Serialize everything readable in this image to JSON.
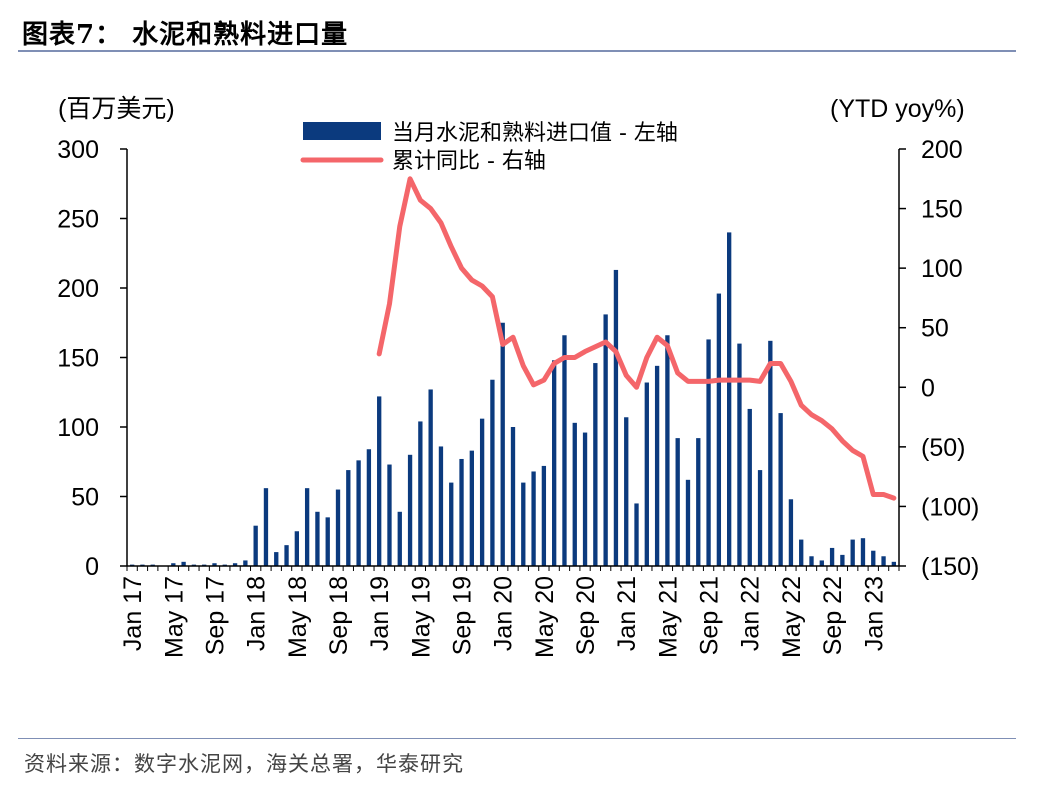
{
  "header": {
    "title": "图表7：  水泥和熟料进口量"
  },
  "footer": {
    "source": "资料来源：数字水泥网，海关总署，华泰研究"
  },
  "chart_data": {
    "type": "bar+line",
    "y_left_unit": "(百万美元)",
    "y_right_unit": "(YTD yoy%)",
    "y_left_ticks": [
      {
        "v": 0,
        "label": "0"
      },
      {
        "v": 50,
        "label": "50"
      },
      {
        "v": 100,
        "label": "100"
      },
      {
        "v": 150,
        "label": "150"
      },
      {
        "v": 200,
        "label": "200"
      },
      {
        "v": 250,
        "label": "250"
      },
      {
        "v": 300,
        "label": "300"
      }
    ],
    "y_right_ticks": [
      {
        "v": -150,
        "label": "(150)"
      },
      {
        "v": -100,
        "label": "(100)"
      },
      {
        "v": -50,
        "label": "(50)"
      },
      {
        "v": 0,
        "label": "0"
      },
      {
        "v": 50,
        "label": "50"
      },
      {
        "v": 100,
        "label": "100"
      },
      {
        "v": 150,
        "label": "150"
      },
      {
        "v": 200,
        "label": "200"
      }
    ],
    "y_left_range": [
      0,
      300
    ],
    "y_right_range": [
      -150,
      200
    ],
    "x_tick_labels": [
      {
        "i": 0,
        "label": "Jan 17"
      },
      {
        "i": 4,
        "label": "May 17"
      },
      {
        "i": 8,
        "label": "Sep 17"
      },
      {
        "i": 12,
        "label": "Jan 18"
      },
      {
        "i": 16,
        "label": "May 18"
      },
      {
        "i": 20,
        "label": "Sep 18"
      },
      {
        "i": 24,
        "label": "Jan 19"
      },
      {
        "i": 28,
        "label": "May 19"
      },
      {
        "i": 32,
        "label": "Sep 19"
      },
      {
        "i": 36,
        "label": "Jan 20"
      },
      {
        "i": 40,
        "label": "May 20"
      },
      {
        "i": 44,
        "label": "Sep 20"
      },
      {
        "i": 48,
        "label": "Jan 21"
      },
      {
        "i": 52,
        "label": "May 21"
      },
      {
        "i": 56,
        "label": "Sep 21"
      },
      {
        "i": 60,
        "label": "Jan 22"
      },
      {
        "i": 64,
        "label": "May 22"
      },
      {
        "i": 68,
        "label": "Sep 22"
      },
      {
        "i": 72,
        "label": "Jan 23"
      }
    ],
    "series": [
      {
        "name": "当月水泥和熟料进口值 - 左轴",
        "type": "bar",
        "color": "#0b3a7e",
        "values": [
          1,
          1,
          1,
          0,
          2,
          3,
          1,
          1,
          2,
          1,
          2,
          4,
          29,
          56,
          10,
          15,
          25,
          56,
          39,
          35,
          55,
          69,
          76,
          84,
          122,
          73,
          39,
          80,
          104,
          127,
          86,
          60,
          77,
          83,
          106,
          134,
          175,
          100,
          60,
          68,
          72,
          148,
          166,
          103,
          96,
          146,
          181,
          213,
          107,
          45,
          132,
          144,
          166,
          92,
          62,
          92,
          163,
          196,
          240,
          160,
          113,
          69,
          162,
          110,
          48,
          19,
          7,
          4,
          13,
          8,
          19,
          20,
          11,
          7,
          3
        ],
        "x_start_index": 0
      },
      {
        "name": "累计同比 - 右轴",
        "type": "line",
        "color": "#f4666a",
        "values": [
          28,
          70,
          135,
          175,
          157,
          150,
          138,
          118,
          100,
          90,
          85,
          76,
          36,
          42,
          18,
          2,
          6,
          20,
          25,
          25,
          30,
          34,
          38,
          30,
          10,
          0,
          25,
          42,
          35,
          12,
          5,
          5,
          5,
          6,
          6,
          6,
          6,
          5,
          20,
          20,
          5,
          -15,
          -23,
          -28,
          -35,
          -45,
          -53,
          -58,
          -90,
          -90,
          -93
        ],
        "x_start_index": 24
      }
    ]
  }
}
